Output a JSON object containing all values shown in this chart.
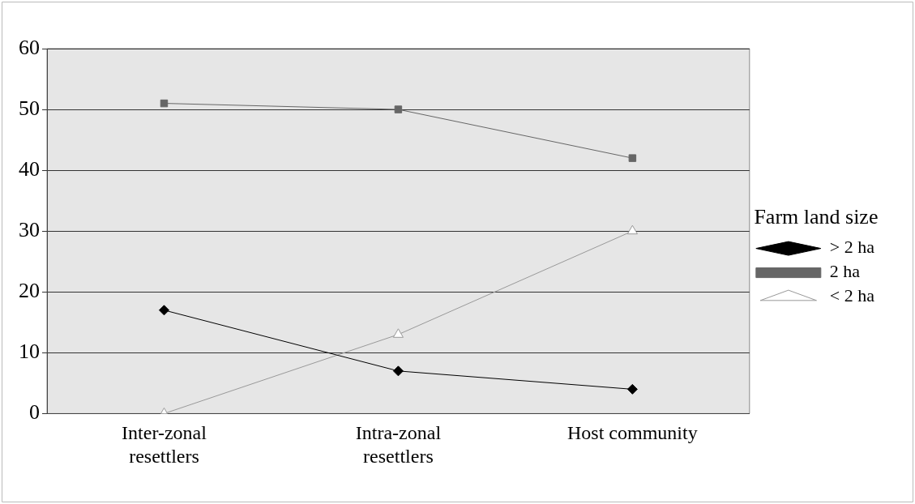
{
  "chart_data": {
    "type": "line",
    "categories": [
      "Inter-zonal resettlers",
      "Intra-zonal resettlers",
      "Host community"
    ],
    "series": [
      {
        "name": "> 2 ha",
        "color": "#000000",
        "marker": "diamond",
        "values": [
          17,
          7,
          4
        ]
      },
      {
        "name": "2 ha",
        "color": "#666666",
        "marker": "square",
        "values": [
          51,
          50,
          42
        ]
      },
      {
        "name": "< 2 ha",
        "color": "#999999",
        "marker": "triangle",
        "values": [
          0,
          13,
          30
        ]
      }
    ],
    "ylim": [
      0,
      60
    ],
    "yticks": [
      0,
      10,
      20,
      30,
      40,
      50,
      60
    ],
    "grid": "y",
    "legend": "right",
    "legend_title": "Farm land size"
  }
}
